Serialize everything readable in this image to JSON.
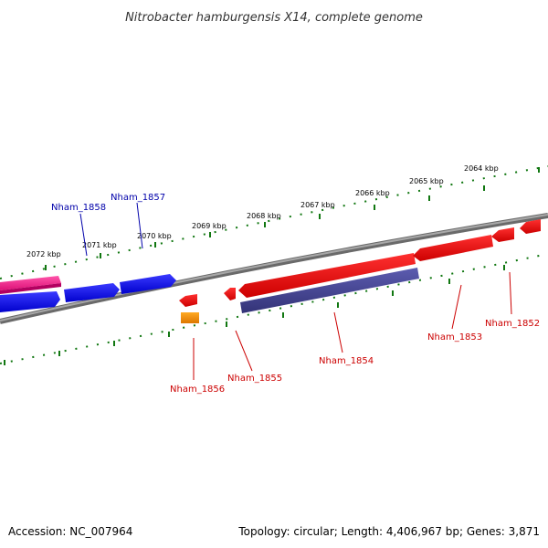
{
  "title": "Nitrobacter hamburgensis X14, complete genome",
  "footer": {
    "accession": "Accession: NC_007964",
    "summary": "Topology: circular; Length: 4,406,967 bp; Genes: 3,871"
  },
  "scale_labels": [
    "2072 kbp",
    "2071 kbp",
    "2070 kbp",
    "2069 kbp",
    "2068 kbp",
    "2067 kbp",
    "2066 kbp",
    "2065 kbp",
    "2064 kbp"
  ],
  "genes": [
    {
      "name": "Nham_1858",
      "strand": "plus"
    },
    {
      "name": "Nham_1857",
      "strand": "plus"
    },
    {
      "name": "Nham_1856",
      "strand": "minus"
    },
    {
      "name": "Nham_1855",
      "strand": "minus"
    },
    {
      "name": "Nham_1854",
      "strand": "minus"
    },
    {
      "name": "Nham_1853",
      "strand": "minus"
    },
    {
      "name": "Nham_1852",
      "strand": "minus"
    }
  ],
  "colors": {
    "plus_strand_gene": "#1010e0",
    "minus_strand_gene": "#ee1111",
    "plus_label": "#0000aa",
    "minus_label": "#cc0000",
    "rna_pink": "#ee2288",
    "orange_feature": "#ee8800",
    "purple_feature": "#4a4a99",
    "backbone": "#808080",
    "tick_green": "#117711"
  }
}
